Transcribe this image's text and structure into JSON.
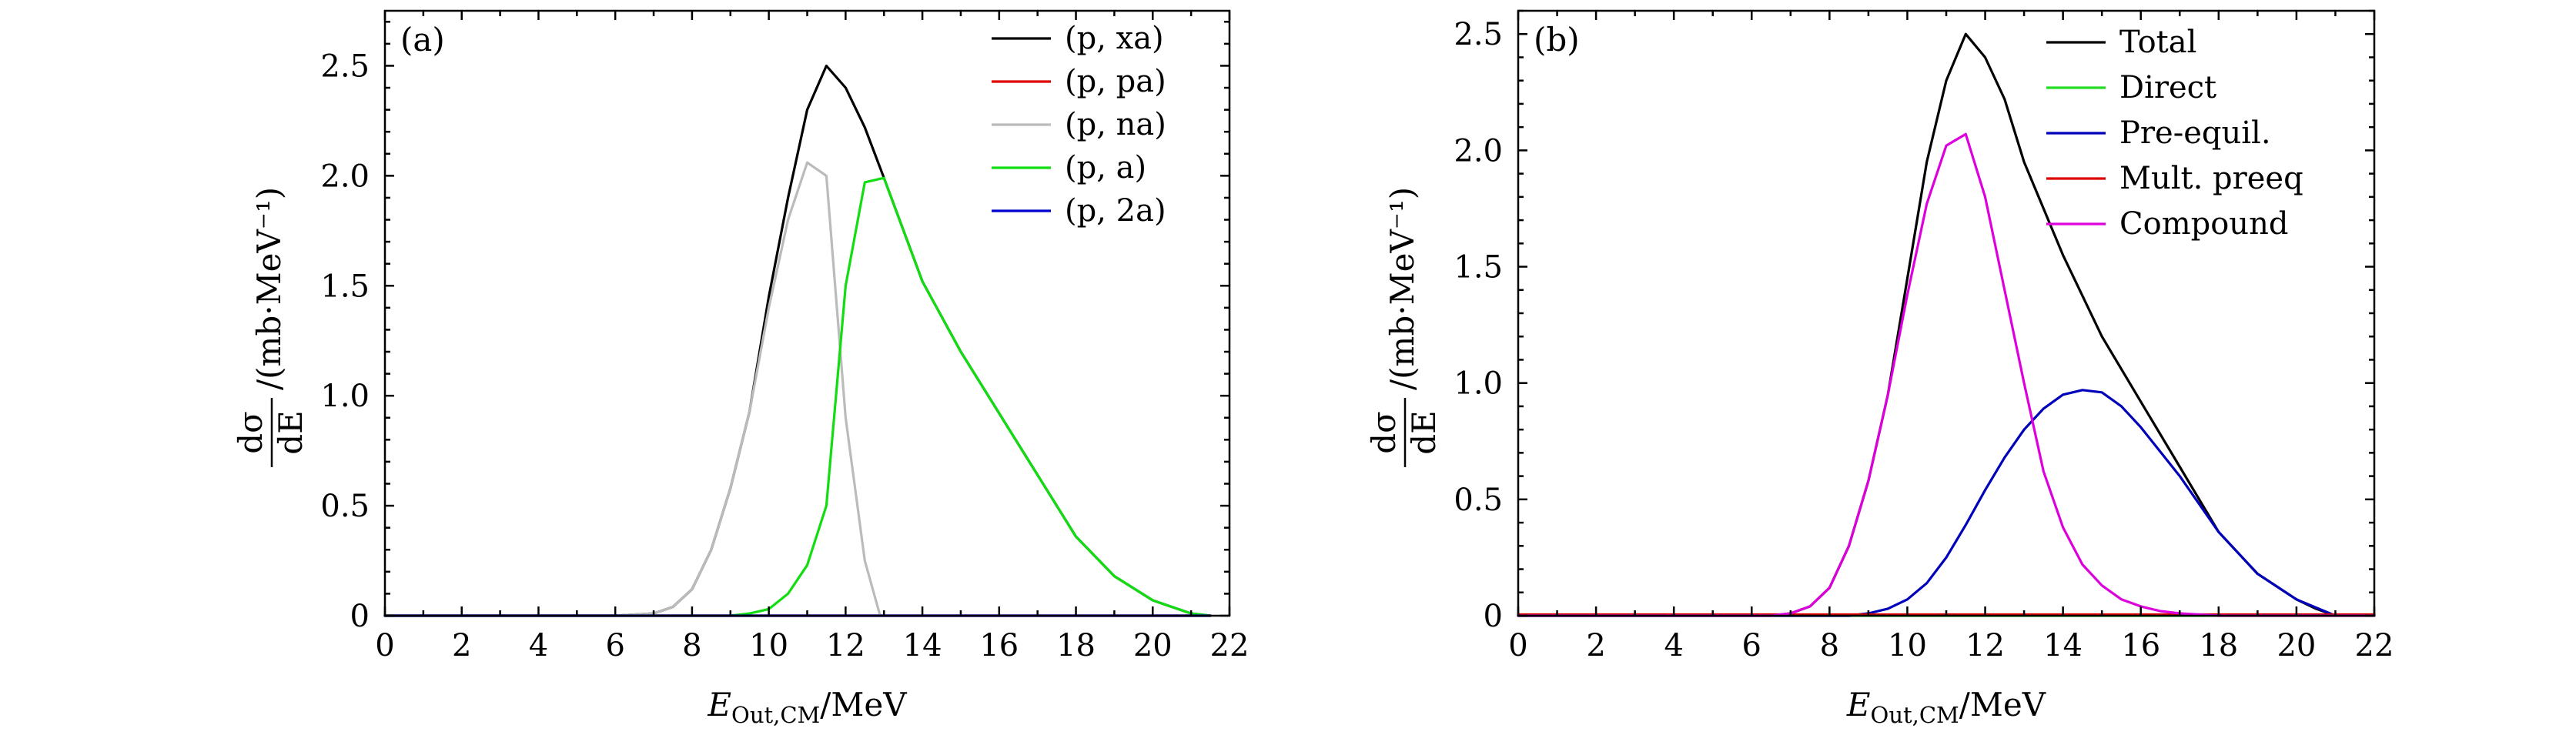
{
  "chart_data": [
    {
      "type": "line",
      "panel_label": "(a)",
      "xlabel": {
        "main": "E",
        "sub": "Out,CM",
        "unit": "/MeV"
      },
      "ylabel": {
        "num": "dσ",
        "den": "dE",
        "unit": "/(mb·MeV⁻¹)"
      },
      "xlim": [
        0,
        22
      ],
      "ylim": [
        0,
        2.75
      ],
      "xticks": [
        "0",
        "2",
        "4",
        "6",
        "8",
        "10",
        "12",
        "14",
        "16",
        "18",
        "20",
        "22"
      ],
      "xtick_values": [
        0,
        2,
        4,
        6,
        8,
        10,
        12,
        14,
        16,
        18,
        20,
        22
      ],
      "yticks": [
        "0",
        "0.5",
        "1.0",
        "1.5",
        "2.0",
        "2.5"
      ],
      "ytick_values": [
        0,
        0.5,
        1.0,
        1.5,
        2.0,
        2.5
      ],
      "grid": false,
      "legend_position": "top-right",
      "series": [
        {
          "name": "(p, xa)",
          "color": "#000000",
          "x": [
            0,
            6,
            7,
            7.5,
            8,
            8.5,
            9,
            9.5,
            10,
            10.5,
            11,
            11.5,
            12,
            12.5,
            13,
            14,
            15,
            16,
            17,
            18,
            19,
            20,
            21,
            21.5
          ],
          "y": [
            0,
            0,
            0.01,
            0.04,
            0.12,
            0.3,
            0.58,
            0.93,
            1.45,
            1.9,
            2.3,
            2.5,
            2.4,
            2.22,
            1.99,
            1.52,
            1.2,
            0.92,
            0.64,
            0.36,
            0.18,
            0.07,
            0.01,
            0
          ]
        },
        {
          "name": "(p, pa)",
          "color": "#e00000",
          "x": [
            0,
            21.5
          ],
          "y": [
            0,
            0
          ]
        },
        {
          "name": "(p, na)",
          "color": "#bbbbbb",
          "x": [
            0,
            6,
            7,
            7.5,
            8,
            8.5,
            9,
            9.5,
            10,
            10.5,
            11,
            11.5,
            12,
            12.5,
            12.9,
            13.5,
            21.5
          ],
          "y": [
            0,
            0,
            0.01,
            0.04,
            0.12,
            0.3,
            0.58,
            0.93,
            1.4,
            1.8,
            2.06,
            2.0,
            0.9,
            0.25,
            0,
            0,
            0
          ]
        },
        {
          "name": "(p, a)",
          "color": "#11dd11",
          "x": [
            0,
            9,
            9.5,
            10,
            10.5,
            11,
            11.5,
            12,
            12.5,
            13,
            14,
            15,
            16,
            17,
            18,
            19,
            20,
            21,
            21.5
          ],
          "y": [
            0,
            0,
            0.01,
            0.03,
            0.1,
            0.23,
            0.5,
            1.5,
            1.97,
            1.99,
            1.52,
            1.2,
            0.92,
            0.64,
            0.36,
            0.18,
            0.07,
            0.01,
            0
          ]
        },
        {
          "name": "(p, 2a)",
          "color": "#0000cc",
          "x": [
            0,
            21.5
          ],
          "y": [
            0,
            0
          ]
        }
      ]
    },
    {
      "type": "line",
      "panel_label": "(b)",
      "xlabel": {
        "main": "E",
        "sub": "Out,CM",
        "unit": "/MeV"
      },
      "ylabel": {
        "num": "dσ",
        "den": "dE",
        "unit": "/(mb·MeV⁻¹)"
      },
      "xlim": [
        0,
        22
      ],
      "ylim": [
        0,
        2.6
      ],
      "xticks": [
        "0",
        "2",
        "4",
        "6",
        "8",
        "10",
        "12",
        "14",
        "16",
        "18",
        "20",
        "22"
      ],
      "xtick_values": [
        0,
        2,
        4,
        6,
        8,
        10,
        12,
        14,
        16,
        18,
        20,
        22
      ],
      "yticks": [
        "0",
        "0.5",
        "1.0",
        "1.5",
        "2.0",
        "2.5"
      ],
      "ytick_values": [
        0,
        0.5,
        1.0,
        1.5,
        2.0,
        2.5
      ],
      "grid": false,
      "legend_position": "top-right",
      "series": [
        {
          "name": "Total",
          "color": "#000000",
          "x": [
            0,
            6.5,
            7,
            7.5,
            8,
            8.5,
            9,
            9.5,
            10,
            10.5,
            11,
            11.5,
            12,
            12.5,
            13,
            14,
            15,
            16,
            17,
            18,
            19,
            20,
            20.5,
            21
          ],
          "y": [
            0,
            0,
            0.01,
            0.04,
            0.12,
            0.3,
            0.58,
            0.95,
            1.45,
            1.95,
            2.3,
            2.5,
            2.4,
            2.22,
            1.95,
            1.55,
            1.2,
            0.92,
            0.64,
            0.36,
            0.18,
            0.07,
            0.03,
            0
          ]
        },
        {
          "name": "Direct",
          "color": "#22dd22",
          "x": [
            0,
            22
          ],
          "y": [
            0,
            0
          ]
        },
        {
          "name": "Pre-equil.",
          "color": "#0000bb",
          "x": [
            0,
            8.5,
            9,
            9.5,
            10,
            10.5,
            11,
            11.5,
            12,
            12.5,
            13,
            13.5,
            14,
            14.5,
            15,
            15.5,
            16,
            17,
            18,
            19,
            20,
            21
          ],
          "y": [
            0,
            0,
            0.01,
            0.03,
            0.07,
            0.14,
            0.25,
            0.39,
            0.54,
            0.68,
            0.8,
            0.89,
            0.95,
            0.97,
            0.96,
            0.9,
            0.81,
            0.6,
            0.36,
            0.18,
            0.07,
            0
          ]
        },
        {
          "name": "Mult. preeq",
          "color": "#dd0000",
          "x": [
            0,
            22
          ],
          "y": [
            0.005,
            0.005
          ]
        },
        {
          "name": "Compound",
          "color": "#dd00dd",
          "x": [
            0,
            6.5,
            7,
            7.5,
            8,
            8.5,
            9,
            9.5,
            10,
            10.5,
            11,
            11.5,
            12,
            12.5,
            13,
            13.5,
            14,
            14.5,
            15,
            15.5,
            16,
            16.5,
            17,
            17.5,
            18,
            19,
            22
          ],
          "y": [
            0,
            0,
            0.01,
            0.04,
            0.12,
            0.3,
            0.58,
            0.95,
            1.38,
            1.77,
            2.02,
            2.07,
            1.8,
            1.4,
            1.0,
            0.62,
            0.38,
            0.22,
            0.13,
            0.07,
            0.04,
            0.02,
            0.01,
            0.005,
            0,
            0,
            0
          ]
        }
      ]
    }
  ]
}
